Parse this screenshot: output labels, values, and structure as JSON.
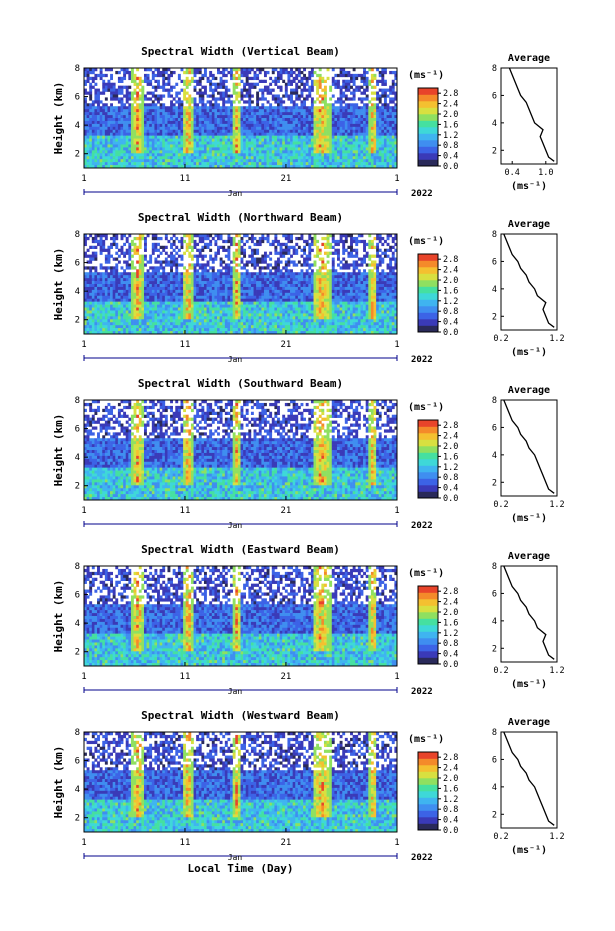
{
  "figure": {
    "xaxis_title": "Local Time (Day)",
    "month_label": "Jan",
    "year_label": "2022",
    "y_label": "Height (km)",
    "unit_label": "(ms⁻¹)",
    "avg_title": "Average"
  },
  "chart_data": [
    {
      "type": "heatmap",
      "title": "Spectral Width (Vertical Beam)",
      "x_ticks": [
        "1",
        "11",
        "21",
        "1"
      ],
      "y_ticks": [
        "2",
        "4",
        "6",
        "8"
      ],
      "ylim": [
        1,
        8
      ],
      "colorbar_ticks": [
        "0.0",
        "0.4",
        "0.8",
        "1.2",
        "1.6",
        "2.0",
        "2.4",
        "2.8"
      ],
      "colorbar_range": [
        0.0,
        3.0
      ],
      "average_profile": {
        "type": "line",
        "title": "Average",
        "xlabel": "(ms⁻¹)",
        "x_ticks": [
          "0.4",
          "1.0"
        ],
        "xlim": [
          0.2,
          1.2
        ],
        "height": [
          1.2,
          1.5,
          2.0,
          2.5,
          3.0,
          3.5,
          4.0,
          4.5,
          5.0,
          5.5,
          6.0,
          6.5,
          7.0,
          7.5,
          8.0
        ],
        "value": [
          1.15,
          1.05,
          1.0,
          0.95,
          0.9,
          0.95,
          0.8,
          0.75,
          0.7,
          0.65,
          0.55,
          0.5,
          0.45,
          0.4,
          0.35
        ]
      }
    },
    {
      "type": "heatmap",
      "title": "Spectral Width (Northward Beam)",
      "x_ticks": [
        "1",
        "11",
        "21",
        "1"
      ],
      "y_ticks": [
        "2",
        "4",
        "6",
        "8"
      ],
      "ylim": [
        1,
        8
      ],
      "colorbar_ticks": [
        "0.0",
        "0.4",
        "0.8",
        "1.2",
        "1.6",
        "2.0",
        "2.4",
        "2.8"
      ],
      "colorbar_range": [
        0.0,
        3.0
      ],
      "average_profile": {
        "type": "line",
        "title": "Average",
        "xlabel": "(ms⁻¹)",
        "x_ticks": [
          "0.2",
          "1.2"
        ],
        "xlim": [
          0.2,
          1.2
        ],
        "height": [
          1.2,
          1.5,
          2.0,
          2.5,
          3.0,
          3.5,
          4.0,
          4.5,
          5.0,
          5.5,
          6.0,
          6.5,
          7.0,
          7.5,
          8.0
        ],
        "value": [
          1.15,
          1.05,
          1.0,
          0.95,
          1.0,
          0.85,
          0.8,
          0.7,
          0.65,
          0.55,
          0.5,
          0.4,
          0.35,
          0.3,
          0.25
        ]
      }
    },
    {
      "type": "heatmap",
      "title": "Spectral Width (Southward Beam)",
      "x_ticks": [
        "1",
        "11",
        "21",
        "1"
      ],
      "y_ticks": [
        "2",
        "4",
        "6",
        "8"
      ],
      "ylim": [
        1,
        8
      ],
      "colorbar_ticks": [
        "0.0",
        "0.4",
        "0.8",
        "1.2",
        "1.6",
        "2.0",
        "2.4",
        "2.8"
      ],
      "colorbar_range": [
        0.0,
        3.0
      ],
      "average_profile": {
        "type": "line",
        "title": "Average",
        "xlabel": "(ms⁻¹)",
        "x_ticks": [
          "0.2",
          "1.2"
        ],
        "xlim": [
          0.2,
          1.2
        ],
        "height": [
          1.2,
          1.5,
          2.0,
          2.5,
          3.0,
          3.5,
          4.0,
          4.5,
          5.0,
          5.5,
          6.0,
          6.5,
          7.0,
          7.5,
          8.0
        ],
        "value": [
          1.15,
          1.05,
          1.0,
          0.95,
          0.9,
          0.85,
          0.8,
          0.7,
          0.65,
          0.55,
          0.5,
          0.4,
          0.35,
          0.3,
          0.25
        ]
      }
    },
    {
      "type": "heatmap",
      "title": "Spectral Width (Eastward Beam)",
      "x_ticks": [
        "1",
        "11",
        "21",
        "1"
      ],
      "y_ticks": [
        "2",
        "4",
        "6",
        "8"
      ],
      "ylim": [
        1,
        8
      ],
      "colorbar_ticks": [
        "0.0",
        "0.4",
        "0.8",
        "1.2",
        "1.6",
        "2.0",
        "2.4",
        "2.8"
      ],
      "colorbar_range": [
        0.0,
        3.0
      ],
      "average_profile": {
        "type": "line",
        "title": "Average",
        "xlabel": "(ms⁻¹)",
        "x_ticks": [
          "0.2",
          "1.2"
        ],
        "xlim": [
          0.2,
          1.2
        ],
        "height": [
          1.2,
          1.5,
          2.0,
          2.5,
          3.0,
          3.5,
          4.0,
          4.5,
          5.0,
          5.5,
          6.0,
          6.5,
          7.0,
          7.5,
          8.0
        ],
        "value": [
          1.15,
          1.05,
          1.0,
          0.95,
          1.0,
          0.85,
          0.8,
          0.7,
          0.65,
          0.55,
          0.5,
          0.4,
          0.35,
          0.3,
          0.25
        ]
      }
    },
    {
      "type": "heatmap",
      "title": "Spectral Width (Westward Beam)",
      "x_ticks": [
        "1",
        "11",
        "21",
        "1"
      ],
      "y_ticks": [
        "2",
        "4",
        "6",
        "8"
      ],
      "ylim": [
        1,
        8
      ],
      "colorbar_ticks": [
        "0.0",
        "0.4",
        "0.8",
        "1.2",
        "1.6",
        "2.0",
        "2.4",
        "2.8"
      ],
      "colorbar_range": [
        0.0,
        3.0
      ],
      "average_profile": {
        "type": "line",
        "title": "Average",
        "xlabel": "(ms⁻¹)",
        "x_ticks": [
          "0.2",
          "1.2"
        ],
        "xlim": [
          0.2,
          1.2
        ],
        "height": [
          1.2,
          1.5,
          2.0,
          2.5,
          3.0,
          3.5,
          4.0,
          4.5,
          5.0,
          5.5,
          6.0,
          6.5,
          7.0,
          7.5,
          8.0
        ],
        "value": [
          1.15,
          1.05,
          1.0,
          0.95,
          0.9,
          0.85,
          0.8,
          0.7,
          0.65,
          0.55,
          0.5,
          0.4,
          0.35,
          0.3,
          0.25
        ]
      }
    }
  ],
  "colormap": [
    "#2a2a5a",
    "#3a3ab8",
    "#3c63e6",
    "#3f8ef0",
    "#3fb4f0",
    "#3ed8d8",
    "#45e0a0",
    "#8fe060",
    "#d8e040",
    "#f4c030",
    "#f48a2a",
    "#e8442a"
  ]
}
